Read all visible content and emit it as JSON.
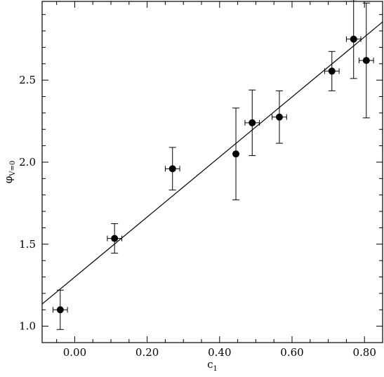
{
  "chart_data": {
    "type": "scatter",
    "xlabel": {
      "main": "c",
      "sub": "1"
    },
    "ylabel": {
      "main": "φ",
      "sub": "V=0"
    },
    "xlim": [
      -0.09,
      0.85
    ],
    "ylim": [
      0.9,
      2.98
    ],
    "x_ticks": [
      {
        "value": 0.0,
        "label": "0.00"
      },
      {
        "value": 0.2,
        "label": "0.20"
      },
      {
        "value": 0.4,
        "label": "0.40"
      },
      {
        "value": 0.6,
        "label": "0.60"
      },
      {
        "value": 0.8,
        "label": "0.80"
      }
    ],
    "y_ticks": [
      {
        "value": 1.0,
        "label": "1.0"
      },
      {
        "value": 1.5,
        "label": "1.5"
      },
      {
        "value": 2.0,
        "label": "2.0"
      },
      {
        "value": 2.5,
        "label": "2.5"
      }
    ],
    "x_minor_step": 0.05,
    "y_minor_step": 0.1,
    "points": [
      {
        "x": -0.04,
        "y": 1.1,
        "xerr": 0.02,
        "yerr_low": 0.12,
        "yerr_high": 0.12
      },
      {
        "x": 0.11,
        "y": 1.535,
        "xerr": 0.02,
        "yerr_low": 0.09,
        "yerr_high": 0.09
      },
      {
        "x": 0.27,
        "y": 1.96,
        "xerr": 0.02,
        "yerr_low": 0.13,
        "yerr_high": 0.13
      },
      {
        "x": 0.445,
        "y": 2.05,
        "xerr": 0.0,
        "yerr_low": 0.28,
        "yerr_high": 0.28
      },
      {
        "x": 0.49,
        "y": 2.24,
        "xerr": 0.02,
        "yerr_low": 0.2,
        "yerr_high": 0.2
      },
      {
        "x": 0.565,
        "y": 2.275,
        "xerr": 0.02,
        "yerr_low": 0.16,
        "yerr_high": 0.16
      },
      {
        "x": 0.71,
        "y": 2.555,
        "xerr": 0.02,
        "yerr_low": 0.12,
        "yerr_high": 0.12
      },
      {
        "x": 0.77,
        "y": 2.75,
        "xerr": 0.02,
        "yerr_low": 0.24,
        "yerr_high": 0.24
      },
      {
        "x": 0.805,
        "y": 2.62,
        "xerr": 0.02,
        "yerr_low": 0.35,
        "yerr_high": 0.35
      }
    ],
    "fit_line": {
      "x": [
        -0.09,
        0.85
      ],
      "y": [
        1.135,
        2.855
      ]
    },
    "grid": false,
    "legend": "none",
    "colors": {
      "marks": "#000000",
      "background": "#ffffff"
    }
  }
}
